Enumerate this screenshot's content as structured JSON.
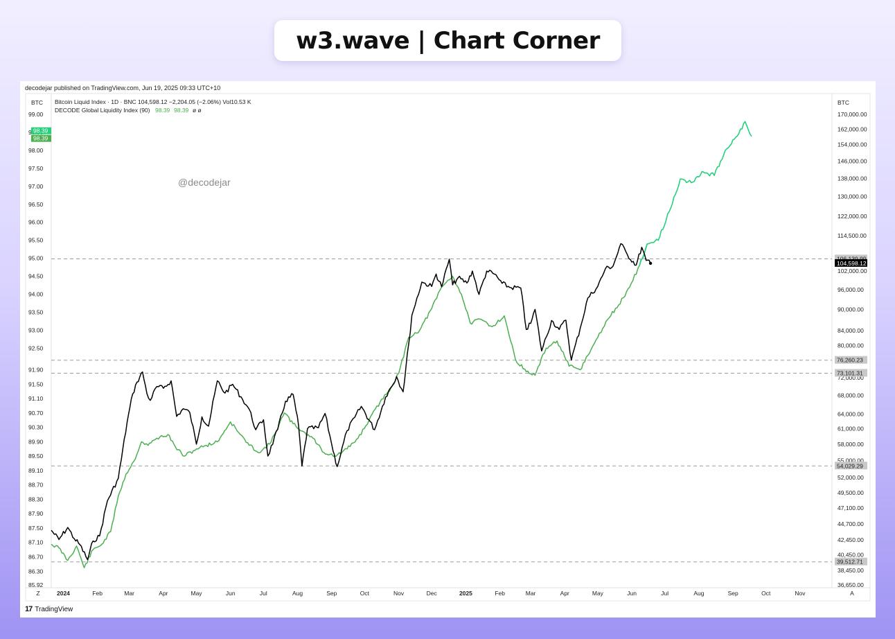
{
  "brand": {
    "title": "w3.wave | Chart Corner"
  },
  "publish_line": "decodejar published on TradingView.com, Jun 19, 2025 09:33 UTC+10",
  "watermark": "@decodejar",
  "footer": {
    "logo_mark": "17",
    "logo_text": "TradingView"
  },
  "legend": {
    "line1": "Bitcoin Liquid Index · 1D · BNC  104,598.12  −2,204.05 (−2.06%)  Vol10.53 K",
    "line2_name": "DECODE Global Liquidity Index (90)",
    "line2_v1": "98.39",
    "line2_v2": "98.39",
    "line2_tail": "ø  ø"
  },
  "colors": {
    "btc": "#000000",
    "liquidity": "#4caf50",
    "liquidity_future": "#26d07c",
    "badge": "#c8c8c8"
  },
  "chart_data": {
    "type": "line",
    "left_axis": {
      "title": "BTC",
      "ticks": [
        "99.00",
        "98.50",
        "98.00",
        "97.50",
        "97.00",
        "96.50",
        "96.00",
        "95.50",
        "95.00",
        "94.50",
        "94.00",
        "93.50",
        "93.00",
        "92.50",
        "91.90",
        "91.50",
        "91.10",
        "90.70",
        "90.30",
        "89.90",
        "89.50",
        "89.10",
        "88.70",
        "88.30",
        "87.90",
        "87.50",
        "87.10",
        "86.70",
        "86.30",
        "85.92"
      ],
      "current_badges": [
        "98.39",
        "98.39"
      ]
    },
    "right_axis": {
      "title": "BTC",
      "ticks": [
        "170,000.00",
        "162,000.00",
        "154,000.00",
        "146,000.00",
        "138,000.00",
        "130,000.00",
        "122,000.00",
        "114,500.00",
        "102,000.00",
        "96,000.00",
        "90,000.00",
        "84,000.00",
        "80,000.00",
        "72,000.00",
        "68,000.00",
        "64,000.00",
        "61,000.00",
        "58,000.00",
        "55,000.00",
        "52,000.00",
        "49,500.00",
        "47,100.00",
        "44,700.00",
        "42,450.00",
        "40,450.00",
        "38,450.00",
        "36,650.00"
      ],
      "badges": [
        {
          "label": "106,139.99",
          "value": 106139.99,
          "style": "gray"
        },
        {
          "label": "104,598.12",
          "value": 104598.12,
          "style": "black"
        },
        {
          "label": "76,260.23",
          "value": 76260.23,
          "style": "gray"
        },
        {
          "label": "73,101.31",
          "value": 73101.31,
          "style": "gray"
        },
        {
          "label": "54,029.29",
          "value": 54029.29,
          "style": "gray"
        },
        {
          "label": "39,512.71",
          "value": 39512.71,
          "style": "gray"
        }
      ]
    },
    "x_ticks": [
      "2024",
      "Feb",
      "Mar",
      "Apr",
      "May",
      "Jun",
      "Jul",
      "Aug",
      "Sep",
      "Oct",
      "Nov",
      "Dec",
      "2025",
      "Feb",
      "Mar",
      "Apr",
      "May",
      "Jun",
      "Jul",
      "Aug",
      "Sep",
      "Oct",
      "Nov"
    ],
    "x_start": "2023-12-21",
    "x_end": "2025-11-30",
    "corner_left": "Z",
    "corner_right": "A",
    "horizontal_levels": [
      106139.99,
      76260.23,
      73101.31,
      54029.29,
      39512.71
    ],
    "series": [
      {
        "name": "Bitcoin Liquid Index",
        "color": "#000000",
        "x": [
          "2023-12-21",
          "2023-12-28",
          "2024-01-05",
          "2024-01-11",
          "2024-01-16",
          "2024-01-23",
          "2024-01-28",
          "2024-02-03",
          "2024-02-10",
          "2024-02-20",
          "2024-02-28",
          "2024-03-04",
          "2024-03-08",
          "2024-03-13",
          "2024-03-17",
          "2024-03-20",
          "2024-03-26",
          "2024-04-01",
          "2024-04-08",
          "2024-04-13",
          "2024-04-19",
          "2024-04-25",
          "2024-05-01",
          "2024-05-06",
          "2024-05-12",
          "2024-05-20",
          "2024-05-27",
          "2024-06-03",
          "2024-06-12",
          "2024-06-18",
          "2024-06-24",
          "2024-07-01",
          "2024-07-05",
          "2024-07-14",
          "2024-07-21",
          "2024-07-28",
          "2024-08-02",
          "2024-08-05",
          "2024-08-10",
          "2024-08-20",
          "2024-08-26",
          "2024-09-01",
          "2024-09-06",
          "2024-09-15",
          "2024-09-22",
          "2024-09-28",
          "2024-10-10",
          "2024-10-20",
          "2024-10-30",
          "2024-11-05",
          "2024-11-10",
          "2024-11-13",
          "2024-11-22",
          "2024-12-01",
          "2024-12-05",
          "2024-12-10",
          "2024-12-17",
          "2024-12-20",
          "2024-12-25",
          "2025-01-02",
          "2025-01-07",
          "2025-01-13",
          "2025-01-20",
          "2025-01-27",
          "2025-02-03",
          "2025-02-10",
          "2025-02-20",
          "2025-02-25",
          "2025-03-01",
          "2025-03-05",
          "2025-03-11",
          "2025-03-20",
          "2025-03-27",
          "2025-04-02",
          "2025-04-07",
          "2025-04-15",
          "2025-04-22",
          "2025-05-01",
          "2025-05-08",
          "2025-05-15",
          "2025-05-22",
          "2025-05-28",
          "2025-06-05",
          "2025-06-10",
          "2025-06-14",
          "2025-06-18"
        ],
        "values": [
          43800,
          42500,
          44200,
          42600,
          41800,
          39800,
          42300,
          43000,
          48200,
          51900,
          62300,
          68300,
          71000,
          73400,
          68400,
          66900,
          70000,
          69600,
          71300,
          63500,
          65100,
          64300,
          58000,
          63400,
          61500,
          71300,
          68500,
          70500,
          67100,
          65000,
          60800,
          62800,
          55800,
          60900,
          66700,
          68200,
          61500,
          54000,
          61000,
          61200,
          64100,
          58000,
          53900,
          60600,
          63300,
          65600,
          60800,
          67600,
          72300,
          68800,
          80300,
          88300,
          98400,
          97000,
          101000,
          96900,
          106000,
          97500,
          99800,
          98100,
          102000,
          94500,
          102000,
          101000,
          98000,
          96700,
          96500,
          84300,
          86000,
          90000,
          78600,
          86800,
          84300,
          86900,
          76300,
          84600,
          93400,
          97000,
          102800,
          103700,
          111500,
          107500,
          104000,
          110200,
          105600,
          104600
        ]
      },
      {
        "name": "DECODE Global Liquidity Index",
        "color": "#4caf50",
        "color_future": "#26d07c",
        "x": [
          "2023-12-21",
          "2023-12-28",
          "2024-01-05",
          "2024-01-13",
          "2024-01-20",
          "2024-01-28",
          "2024-02-05",
          "2024-02-13",
          "2024-02-20",
          "2024-02-27",
          "2024-03-05",
          "2024-03-12",
          "2024-03-18",
          "2024-03-26",
          "2024-04-05",
          "2024-04-12",
          "2024-04-20",
          "2024-05-01",
          "2024-05-10",
          "2024-05-20",
          "2024-06-01",
          "2024-06-10",
          "2024-06-18",
          "2024-06-28",
          "2024-07-08",
          "2024-07-20",
          "2024-07-28",
          "2024-08-05",
          "2024-08-15",
          "2024-08-25",
          "2024-09-05",
          "2024-09-15",
          "2024-09-25",
          "2024-10-05",
          "2024-10-15",
          "2024-10-25",
          "2024-11-01",
          "2024-11-10",
          "2024-11-20",
          "2024-12-01",
          "2024-12-10",
          "2024-12-20",
          "2024-12-28",
          "2025-01-05",
          "2025-01-15",
          "2025-01-25",
          "2025-02-05",
          "2025-02-15",
          "2025-02-25",
          "2025-03-05",
          "2025-03-15",
          "2025-03-25",
          "2025-04-05",
          "2025-04-15",
          "2025-04-22",
          "2025-05-01",
          "2025-05-10",
          "2025-05-20",
          "2025-05-30",
          "2025-06-08",
          "2025-06-15",
          "2025-06-25",
          "2025-07-05",
          "2025-07-15",
          "2025-07-25",
          "2025-08-05",
          "2025-08-15",
          "2025-08-25",
          "2025-09-05",
          "2025-09-12",
          "2025-09-18"
        ],
        "values": [
          87.05,
          86.95,
          86.6,
          87.0,
          86.4,
          86.9,
          87.05,
          87.4,
          88.4,
          89.0,
          89.35,
          89.9,
          89.8,
          90.0,
          90.1,
          89.75,
          89.5,
          89.7,
          89.8,
          89.9,
          90.45,
          90.1,
          89.8,
          89.6,
          89.9,
          90.7,
          90.4,
          90.2,
          90.0,
          89.6,
          89.5,
          89.7,
          90.0,
          90.5,
          91.0,
          91.4,
          91.8,
          92.8,
          93.0,
          93.6,
          94.2,
          94.5,
          94.0,
          93.2,
          93.3,
          93.1,
          93.4,
          92.2,
          91.85,
          91.75,
          92.5,
          92.7,
          92.0,
          91.9,
          92.3,
          92.8,
          93.3,
          93.7,
          94.2,
          94.8,
          95.4,
          95.5,
          96.3,
          97.2,
          97.1,
          97.4,
          97.3,
          98.0,
          98.4,
          98.8,
          98.39
        ]
      }
    ]
  }
}
